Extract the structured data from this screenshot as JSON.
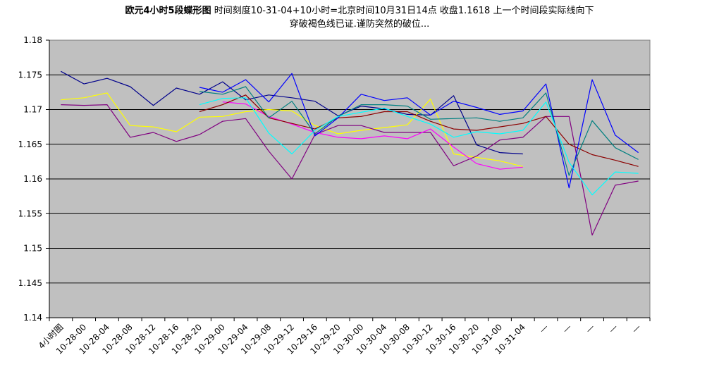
{
  "chart_data": {
    "type": "line",
    "title": "欧元4小时5段蝶形图",
    "subtitle_line1": "时间刻度10-31-04+10小时=北京时间10月31日14点 收盘1.1618  上一个时间段实际线向下",
    "subtitle_line2": "穿破褐色线已证.谨防突然的破位...",
    "xlabel": "",
    "ylabel": "",
    "ylim": [
      1.14,
      1.18
    ],
    "yticks": [
      "1.14",
      "1.145",
      "1.15",
      "1.155",
      "1.16",
      "1.165",
      "1.17",
      "1.175",
      "1.18"
    ],
    "grid": true,
    "legend": "none",
    "plot_background": "#c0c0c0",
    "categories": [
      "4小时图",
      "10-28-00",
      "10-28-04",
      "10-28-08",
      "10-28-12",
      "10-28-16",
      "10-28-20",
      "10-29-00",
      "10-29-04",
      "10-29-08",
      "10-29-12",
      "10-29-16",
      "10-29-20",
      "10-30-00",
      "10-30-04",
      "10-30-08",
      "10-30-12",
      "10-30-16",
      "10-30-20",
      "10-31-00",
      "10-31-04",
      "—",
      "—",
      "—",
      "—",
      "—"
    ],
    "x_labels": [
      "4小时图",
      "10-28-00",
      "10-28-04",
      "10-28-08",
      "10-28-12",
      "10-28-16",
      "10-28-20",
      "10-29-00",
      "10-29-04",
      "10-29-08",
      "10-29-12",
      "10-29-16",
      "10-29-20",
      "10-30-00",
      "10-30-04",
      "10-30-08",
      "10-30-12",
      "10-30-16",
      "10-30-20",
      "10-31-00",
      "10-31-04",
      "—",
      "—",
      "—",
      "—",
      "—"
    ],
    "series": [
      {
        "color": "#00008b",
        "values": [
          1.1755,
          1.1737,
          1.1745,
          1.1733,
          1.1706,
          1.1731,
          1.1722,
          1.174,
          1.1714,
          1.1721,
          1.1717,
          1.1712,
          1.1691,
          1.1705,
          1.1701,
          1.1693,
          1.1692,
          1.172,
          1.1649,
          1.1638,
          1.1636,
          null,
          null,
          null,
          null,
          null
        ]
      },
      {
        "color": "#ffff00",
        "values": [
          1.1714,
          1.1717,
          1.1724,
          1.1677,
          1.1675,
          1.1668,
          1.1689,
          1.169,
          1.1697,
          1.17,
          1.1698,
          1.1677,
          1.1665,
          1.167,
          1.1674,
          1.1678,
          1.1715,
          1.1636,
          1.1631,
          1.1626,
          1.1618,
          null,
          null,
          null,
          null,
          null
        ]
      },
      {
        "color": "#800080",
        "values": [
          1.1707,
          1.1706,
          1.1707,
          1.166,
          1.1667,
          1.1654,
          1.1664,
          1.1683,
          1.1687,
          1.164,
          1.16,
          1.1664,
          1.1677,
          1.1677,
          1.1667,
          1.1667,
          1.1667,
          1.1619,
          1.1633,
          1.1656,
          1.166,
          1.169,
          1.169,
          1.1519,
          1.1591,
          1.1597
        ]
      },
      {
        "color": "#ff00ff",
        "values": [
          null,
          null,
          null,
          null,
          null,
          null,
          null,
          1.1711,
          1.1708,
          1.169,
          1.1679,
          1.1667,
          1.166,
          1.1658,
          1.1662,
          1.1658,
          1.1672,
          1.1646,
          1.1622,
          1.1614,
          1.1617,
          null,
          null,
          null,
          null,
          null
        ]
      },
      {
        "color": "#8b0000",
        "values": [
          null,
          null,
          null,
          null,
          null,
          null,
          1.1697,
          1.1707,
          1.1721,
          1.1688,
          1.168,
          1.1672,
          1.1688,
          1.169,
          1.1697,
          1.1697,
          1.1683,
          1.1672,
          1.167,
          1.1675,
          1.168,
          1.169,
          1.165,
          1.1635,
          1.1627,
          1.1618
        ]
      },
      {
        "color": "#0000ff",
        "values": [
          null,
          null,
          null,
          null,
          null,
          null,
          1.1732,
          1.1725,
          1.1743,
          1.1711,
          1.1752,
          1.1662,
          1.1688,
          1.1722,
          1.1713,
          1.1717,
          1.1692,
          1.1712,
          1.1703,
          1.1693,
          1.1698,
          1.1737,
          1.1587,
          1.1743,
          1.1663,
          1.1638
        ]
      },
      {
        "color": "#008080",
        "values": [
          null,
          null,
          null,
          null,
          null,
          null,
          1.1726,
          1.1722,
          1.1733,
          1.1688,
          1.1712,
          1.1665,
          1.169,
          1.1707,
          1.1707,
          1.1705,
          1.1686,
          1.1687,
          1.1688,
          1.1683,
          1.1688,
          1.1724,
          1.1605,
          1.1684,
          1.1645,
          1.1628
        ]
      },
      {
        "color": "#00ffff",
        "values": [
          null,
          null,
          null,
          null,
          null,
          null,
          1.1707,
          1.1716,
          1.1717,
          1.1666,
          1.1636,
          1.167,
          1.169,
          1.1696,
          1.1702,
          1.169,
          1.1679,
          1.166,
          1.1668,
          1.1665,
          1.167,
          1.1711,
          1.1624,
          1.1577,
          1.161,
          1.1608
        ]
      }
    ]
  }
}
